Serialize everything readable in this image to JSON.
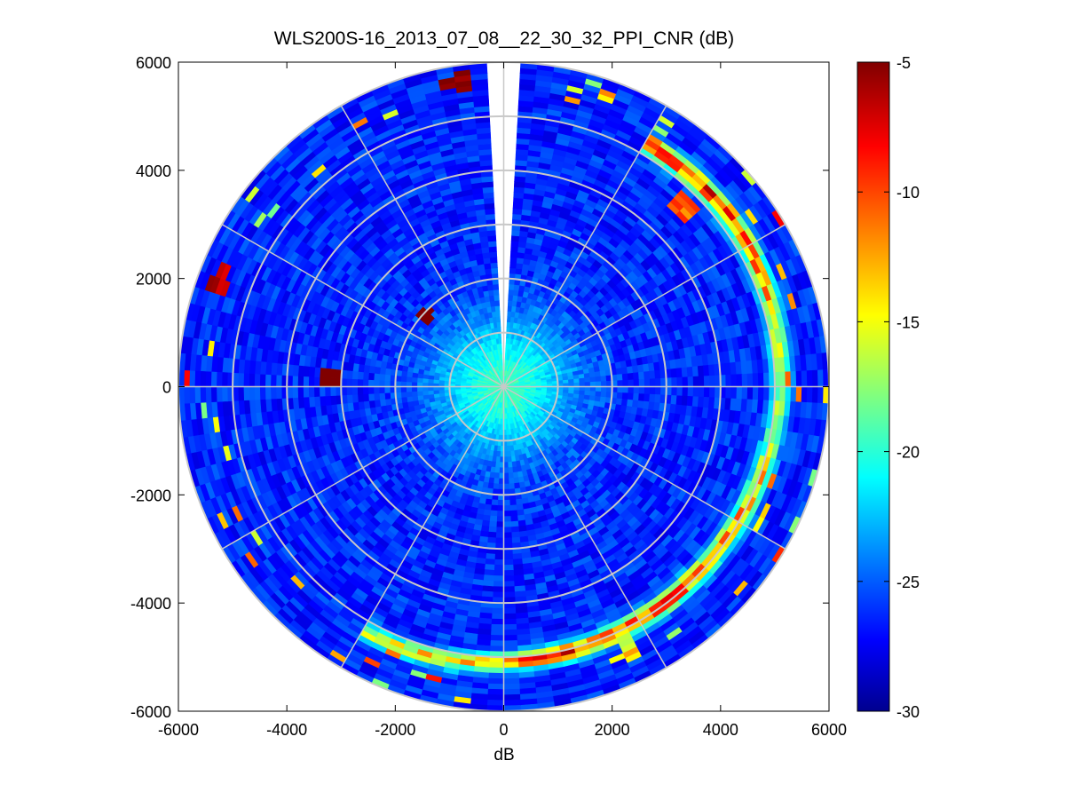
{
  "chart_data": {
    "type": "heatmap",
    "subtype": "polar-ppi",
    "title": "WLS200S-16_2013_07_08__22_30_32_PPI_CNR (dB)",
    "xlabel": "dB",
    "ylabel": "",
    "xlim": [
      -6000,
      6000
    ],
    "ylim": [
      -6000,
      6000
    ],
    "x_ticks": [
      -6000,
      -4000,
      -2000,
      0,
      2000,
      4000,
      6000
    ],
    "y_ticks": [
      -6000,
      -4000,
      -2000,
      0,
      2000,
      4000,
      6000
    ],
    "max_range": 6000,
    "range_rings": [
      1000,
      2000,
      3000,
      4000,
      5000,
      6000
    ],
    "radial_spokes_deg": [
      0,
      30,
      60,
      90,
      120,
      150,
      180,
      210,
      240,
      270,
      300,
      330
    ],
    "blanked_sector_deg": [
      -4,
      4
    ],
    "grid": true,
    "colorbar": {
      "colormap": "jet",
      "min": -30,
      "max": -5,
      "ticks": [
        -5,
        -10,
        -15,
        -20,
        -25,
        -30
      ],
      "placement": "right"
    },
    "field_description": {
      "near_zone_value": -19,
      "background_value": -26,
      "strong_ring_range": 5100,
      "strong_ring_value": -5,
      "features": [
        {
          "range": 1950,
          "azimuth_deg": -47,
          "value": -5
        },
        {
          "range": 3200,
          "azimuth_deg": -87,
          "value": -5
        },
        {
          "range": 4700,
          "azimuth_deg": 45,
          "value": -12
        },
        {
          "range": 5700,
          "azimuth_deg": -8,
          "value": -6
        },
        {
          "range": 5600,
          "azimuth_deg": -70,
          "value": -8
        }
      ]
    }
  }
}
